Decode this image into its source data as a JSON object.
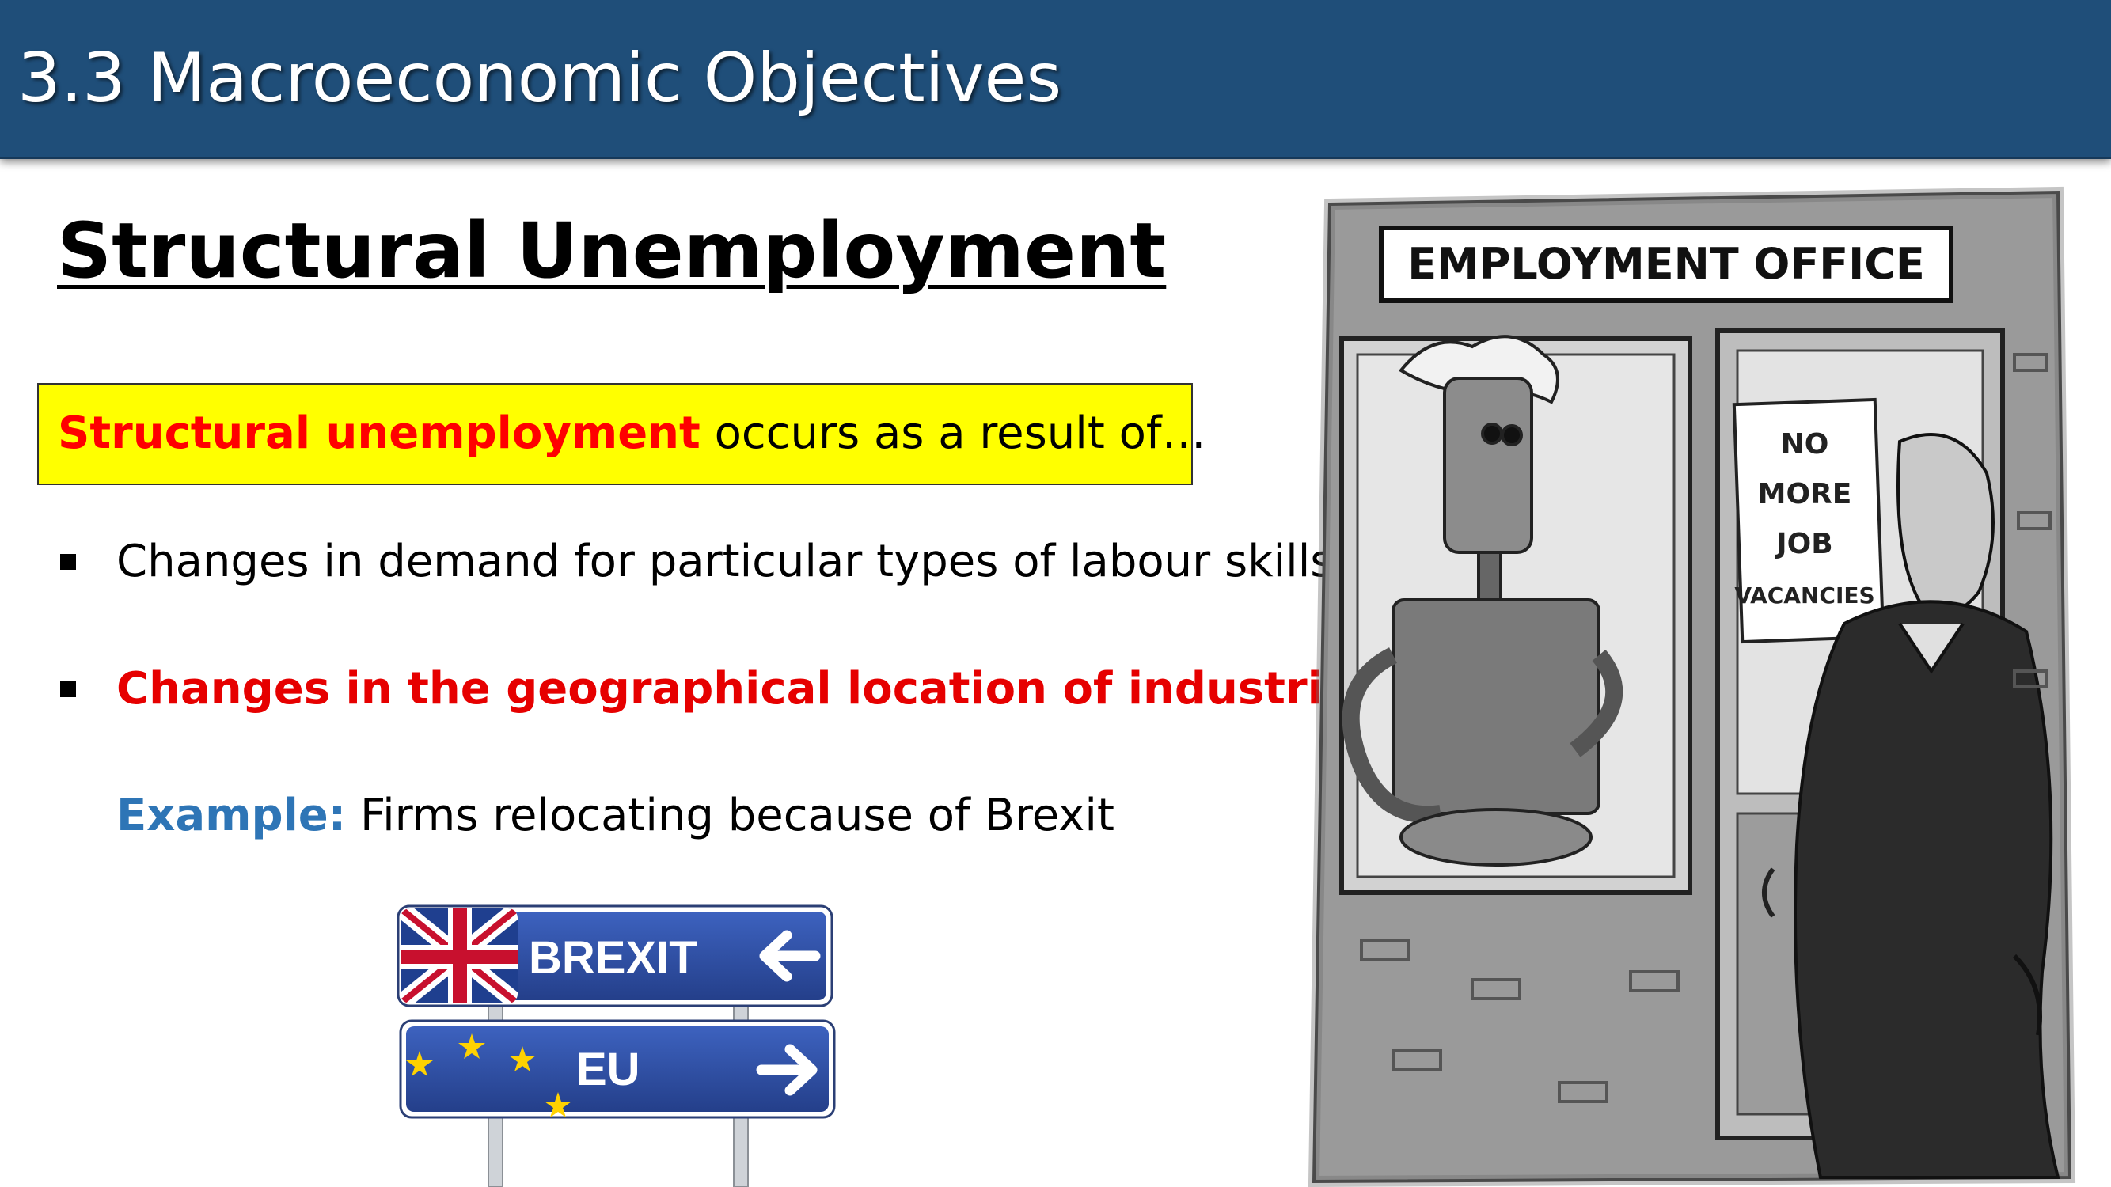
{
  "header": {
    "title": "3.3 Macroeconomic Objectives"
  },
  "heading": "Structural Unemployment",
  "definition": {
    "term": "Structural unemployment",
    "rest": " occurs as a result of…"
  },
  "bullets": [
    "Changes in demand for particular types of labour skills",
    "Changes in the geographical location of industries"
  ],
  "example": {
    "label": "Example:",
    "text": " Firms relocating because of Brexit"
  },
  "sign": {
    "top_label": "BREXIT",
    "bottom_label": "EU"
  },
  "cartoon": {
    "office_sign": "EMPLOYMENT OFFICE",
    "poster_lines": [
      "NO",
      "MORE",
      "JOB",
      "VACANCIES"
    ]
  },
  "colors": {
    "header": "#1f4e79",
    "highlight_box": "#ffff00",
    "emphasis_red": "#e60000",
    "example_blue": "#2e75b6",
    "sign_blue": "#2f4fa3"
  }
}
